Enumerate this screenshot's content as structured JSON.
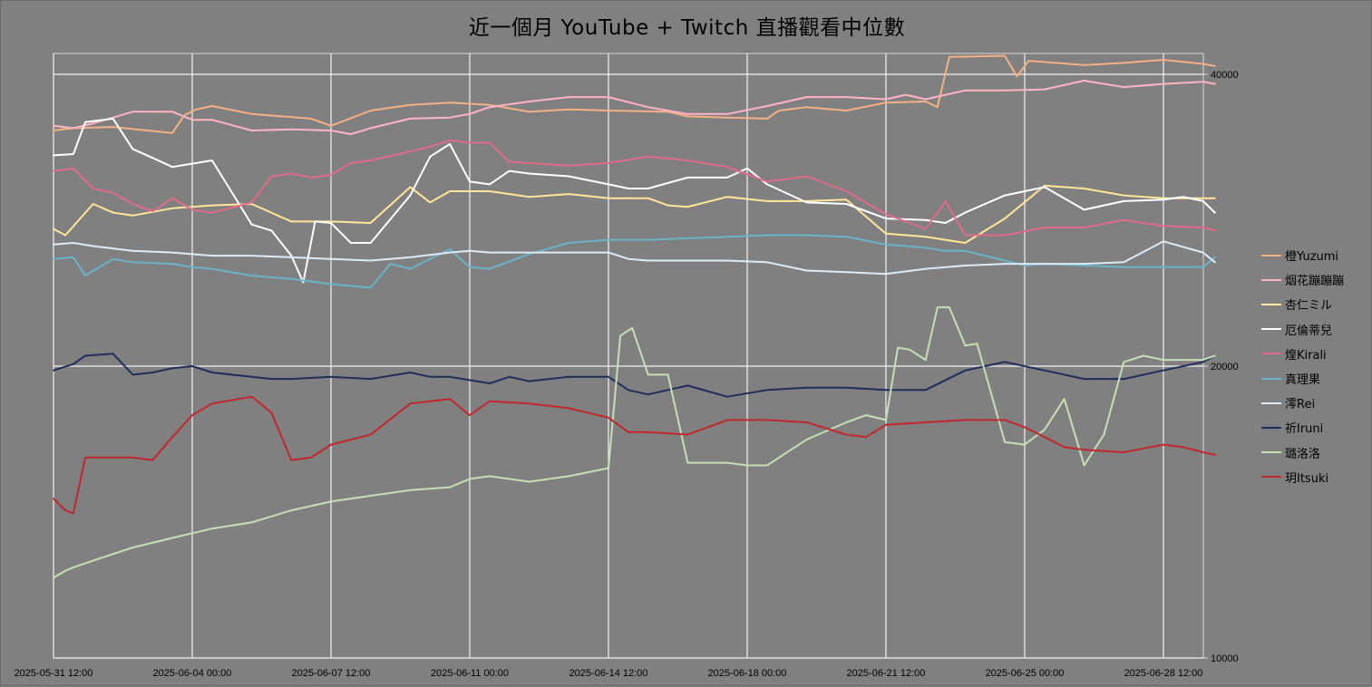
{
  "chart_data": {
    "type": "line",
    "title": "近一個月 YouTube + Twitch 直播觀看中位數",
    "xlabel": "",
    "ylabel": "",
    "y_scale": "log",
    "ylim": [
      10000,
      50000
    ],
    "y_ticks": [
      10000,
      20000,
      40000
    ],
    "y_tick_labels": [
      "10000",
      "20000",
      "40000"
    ],
    "y_axis_side": "right",
    "xlim": [
      "2025-05-31 12:00",
      "2025-06-29 21:00"
    ],
    "x_ticks": [
      "2025-05-31 12:00",
      "2025-06-04 00:00",
      "2025-06-07 12:00",
      "2025-06-11 00:00",
      "2025-06-14 12:00",
      "2025-06-18 00:00",
      "2025-06-21 12:00",
      "2025-06-25 00:00",
      "2025-06-28 12:00"
    ],
    "grid": "major x and y",
    "legend": "right",
    "series": [
      {
        "name": "橙Yuzumi",
        "color": "#f4b183",
        "x": [
          0,
          0.5,
          1.5,
          3,
          3.3,
          3.6,
          4,
          5,
          6.5,
          7,
          8,
          9,
          10,
          11,
          11.5,
          12,
          13,
          14,
          15.5,
          16,
          17,
          18,
          18.3,
          19,
          20,
          21,
          22,
          22.3,
          22.6,
          24,
          24.3,
          24.6,
          26,
          27,
          28,
          29,
          29.3
        ],
        "y": [
          35000,
          35200,
          35300,
          34800,
          36300,
          36800,
          37100,
          36400,
          36000,
          35400,
          36700,
          37200,
          37400,
          37200,
          36900,
          36600,
          36800,
          36700,
          36600,
          36200,
          36100,
          36000,
          36700,
          37000,
          36700,
          37400,
          37500,
          37000,
          41700,
          41800,
          39800,
          41300,
          40900,
          41100,
          41400,
          41000,
          40800
        ]
      },
      {
        "name": "烟花蹦蹦蹦",
        "color": "#ffb3c6",
        "x": [
          0,
          0.5,
          1,
          2,
          3,
          3.5,
          4,
          5,
          6,
          7,
          7.5,
          8,
          9,
          10,
          10.5,
          11,
          12,
          13,
          14,
          15,
          16,
          17,
          18,
          19,
          20,
          21,
          21.5,
          22,
          23,
          24,
          25,
          26,
          27,
          28,
          29,
          29.3
        ],
        "y": [
          35400,
          35200,
          35600,
          36600,
          36600,
          35900,
          35900,
          35000,
          35100,
          35000,
          34700,
          35200,
          36000,
          36100,
          36400,
          37000,
          37500,
          37900,
          37900,
          37000,
          36400,
          36400,
          37100,
          37900,
          37900,
          37700,
          38100,
          37700,
          38500,
          38500,
          38600,
          39400,
          38800,
          39100,
          39300,
          39100
        ]
      },
      {
        "name": "杏仁ミル",
        "color": "#ffe699",
        "x": [
          0,
          0.3,
          1,
          1.5,
          2,
          3,
          4,
          5,
          6,
          7,
          8,
          9,
          9.5,
          10,
          11,
          12,
          13,
          14,
          15,
          15.5,
          16,
          17,
          18,
          19,
          20,
          21,
          22,
          23,
          24,
          25,
          26,
          27,
          28,
          29,
          29.3
        ],
        "y": [
          27700,
          27300,
          29400,
          28800,
          28600,
          29100,
          29300,
          29400,
          28200,
          28200,
          28100,
          30600,
          29500,
          30300,
          30300,
          29900,
          30100,
          29800,
          29800,
          29300,
          29200,
          29900,
          29600,
          29600,
          29700,
          27400,
          27200,
          26800,
          28400,
          30700,
          30500,
          30000,
          29800,
          29800,
          29800
        ]
      },
      {
        "name": "厄倫蒂兒",
        "color": "#ffffff",
        "x": [
          0,
          0.5,
          0.8,
          1.5,
          2,
          2.5,
          3,
          4,
          5,
          5.5,
          6,
          6.3,
          6.6,
          7,
          7.5,
          8,
          9,
          9.5,
          10,
          10.5,
          11,
          11.5,
          12,
          13,
          14,
          14.5,
          15,
          16,
          17,
          17.5,
          18,
          19,
          20,
          21,
          22,
          22.5,
          23,
          24,
          25,
          26,
          27,
          28,
          28.5,
          29,
          29.3
        ],
        "y": [
          33000,
          33100,
          35700,
          36000,
          33500,
          32800,
          32100,
          32600,
          28000,
          27600,
          26000,
          24400,
          28200,
          28100,
          26800,
          26800,
          30000,
          32900,
          33900,
          31000,
          30800,
          31800,
          31600,
          31400,
          30800,
          30500,
          30500,
          31300,
          31300,
          32000,
          30800,
          29500,
          29400,
          28400,
          28300,
          28100,
          28800,
          30000,
          30600,
          29000,
          29600,
          29700,
          29900,
          29600,
          28800
        ]
      },
      {
        "name": "煌Kirali",
        "color": "#e06c8c",
        "x": [
          0,
          0.5,
          1,
          1.5,
          2,
          2.5,
          3,
          3.5,
          4,
          5,
          5.5,
          6,
          6.5,
          7,
          7.5,
          8,
          9,
          9.5,
          10,
          10.5,
          11,
          11.5,
          12,
          13,
          14,
          15,
          16,
          17,
          18,
          19,
          20,
          21,
          22,
          22.5,
          23,
          24,
          25,
          26,
          27,
          28,
          29,
          29.3
        ],
        "y": [
          31800,
          32000,
          30500,
          30200,
          29400,
          28900,
          29800,
          29000,
          28800,
          29500,
          31400,
          31600,
          31300,
          31500,
          32400,
          32600,
          33300,
          33700,
          34200,
          34000,
          34000,
          32500,
          32400,
          32200,
          32400,
          32900,
          32600,
          32100,
          31000,
          31400,
          30300,
          28700,
          27700,
          29600,
          27300,
          27300,
          27800,
          27800,
          28300,
          27900,
          27800,
          27600
        ]
      },
      {
        "name": "真理果",
        "color": "#6bb3c8",
        "x": [
          0,
          0.5,
          0.8,
          1.5,
          2,
          3,
          3.5,
          4,
          5,
          6,
          7,
          8,
          8.5,
          9,
          10,
          10.5,
          11,
          12,
          13,
          14,
          15,
          16,
          17,
          18,
          19,
          20,
          21,
          22,
          22.5,
          23,
          24,
          24.5,
          25,
          26,
          27,
          28,
          29,
          29.3
        ],
        "y": [
          25800,
          25900,
          24800,
          25800,
          25600,
          25500,
          25300,
          25200,
          24800,
          24600,
          24300,
          24100,
          25500,
          25200,
          26400,
          25300,
          25200,
          26100,
          26800,
          27000,
          27000,
          27100,
          27200,
          27300,
          27300,
          27200,
          26700,
          26500,
          26300,
          26300,
          25700,
          25400,
          25500,
          25400,
          25300,
          25300,
          25300,
          25900
        ]
      },
      {
        "name": "澪Rei",
        "color": "#ddebf7",
        "x": [
          0,
          0.5,
          1,
          2,
          3,
          4,
          5,
          6,
          7,
          8,
          9,
          10,
          10.5,
          11,
          12,
          13,
          14,
          14.5,
          15,
          16,
          17,
          18,
          19,
          20,
          21,
          22,
          23,
          24,
          25,
          26,
          27,
          28,
          29,
          29.3
        ],
        "y": [
          26700,
          26800,
          26600,
          26300,
          26200,
          26000,
          26000,
          25900,
          25800,
          25700,
          25900,
          26200,
          26300,
          26200,
          26200,
          26200,
          26200,
          25800,
          25700,
          25700,
          25700,
          25600,
          25100,
          25000,
          24900,
          25200,
          25400,
          25500,
          25500,
          25500,
          25600,
          26900,
          26200,
          25600
        ]
      },
      {
        "name": "祈Iruni",
        "color": "#1f2d5a",
        "x": [
          0,
          0.5,
          0.8,
          1.5,
          2,
          2.5,
          3,
          3.5,
          4,
          5,
          5.5,
          6,
          7,
          8,
          9,
          9.5,
          10,
          11,
          11.5,
          12,
          13,
          14,
          14.5,
          15,
          16,
          17,
          18,
          19,
          20,
          21,
          22,
          23,
          24,
          25,
          26,
          27,
          28,
          29,
          29.3
        ],
        "y": [
          19800,
          20100,
          20500,
          20600,
          19600,
          19700,
          19900,
          20000,
          19700,
          19500,
          19400,
          19400,
          19500,
          19400,
          19700,
          19500,
          19500,
          19200,
          19500,
          19300,
          19500,
          19500,
          18900,
          18700,
          19100,
          18600,
          18900,
          19000,
          19000,
          18900,
          18900,
          19800,
          20200,
          19800,
          19400,
          19400,
          19800,
          20200,
          20500
        ]
      },
      {
        "name": "璐洛洛",
        "color": "#c5e0b4",
        "x": [
          0,
          0.3,
          0.5,
          1,
          2,
          3,
          4,
          5,
          6,
          7,
          8,
          9,
          10,
          10.5,
          11,
          12,
          13,
          14,
          14.3,
          14.6,
          15,
          15.5,
          16,
          17,
          17.5,
          18,
          19,
          20,
          20.5,
          21,
          21.3,
          21.6,
          22,
          22.3,
          22.6,
          23,
          23.3,
          24,
          24.5,
          25,
          25.5,
          26,
          26.5,
          27,
          27.5,
          28,
          28.5,
          29,
          29.3
        ],
        "y": [
          12100,
          12300,
          12400,
          12600,
          13000,
          13300,
          13600,
          13800,
          14200,
          14500,
          14700,
          14900,
          15000,
          15300,
          15400,
          15200,
          15400,
          15700,
          21500,
          21900,
          19600,
          19600,
          15900,
          15900,
          15800,
          15800,
          16800,
          17500,
          17800,
          17600,
          20900,
          20800,
          20300,
          23000,
          23000,
          21000,
          21100,
          16700,
          16600,
          17200,
          18500,
          15800,
          17000,
          20200,
          20500,
          20300,
          20300,
          20300,
          20500
        ]
      },
      {
        "name": "玥Itsuki",
        "color": "#c0282d",
        "x": [
          0,
          0.3,
          0.5,
          0.8,
          1.5,
          2,
          2.5,
          3,
          3.5,
          4,
          5,
          5.5,
          6,
          6.5,
          7,
          8,
          9,
          10,
          10.5,
          11,
          12,
          13,
          14,
          14.5,
          15,
          16,
          17,
          17.5,
          18,
          19,
          20,
          20.5,
          21,
          22,
          23,
          24,
          24.5,
          25,
          25.5,
          26,
          27,
          28,
          28.5,
          29,
          29.3
        ],
        "y": [
          14600,
          14200,
          14100,
          16100,
          16100,
          16100,
          16000,
          16900,
          17800,
          18300,
          18600,
          17900,
          16000,
          16100,
          16600,
          17000,
          18300,
          18500,
          17800,
          18400,
          18300,
          18100,
          17700,
          17100,
          17100,
          17000,
          17600,
          17600,
          17600,
          17500,
          17000,
          16900,
          17400,
          17500,
          17600,
          17600,
          17300,
          16900,
          16500,
          16400,
          16300,
          16600,
          16500,
          16300,
          16200
        ]
      }
    ]
  }
}
